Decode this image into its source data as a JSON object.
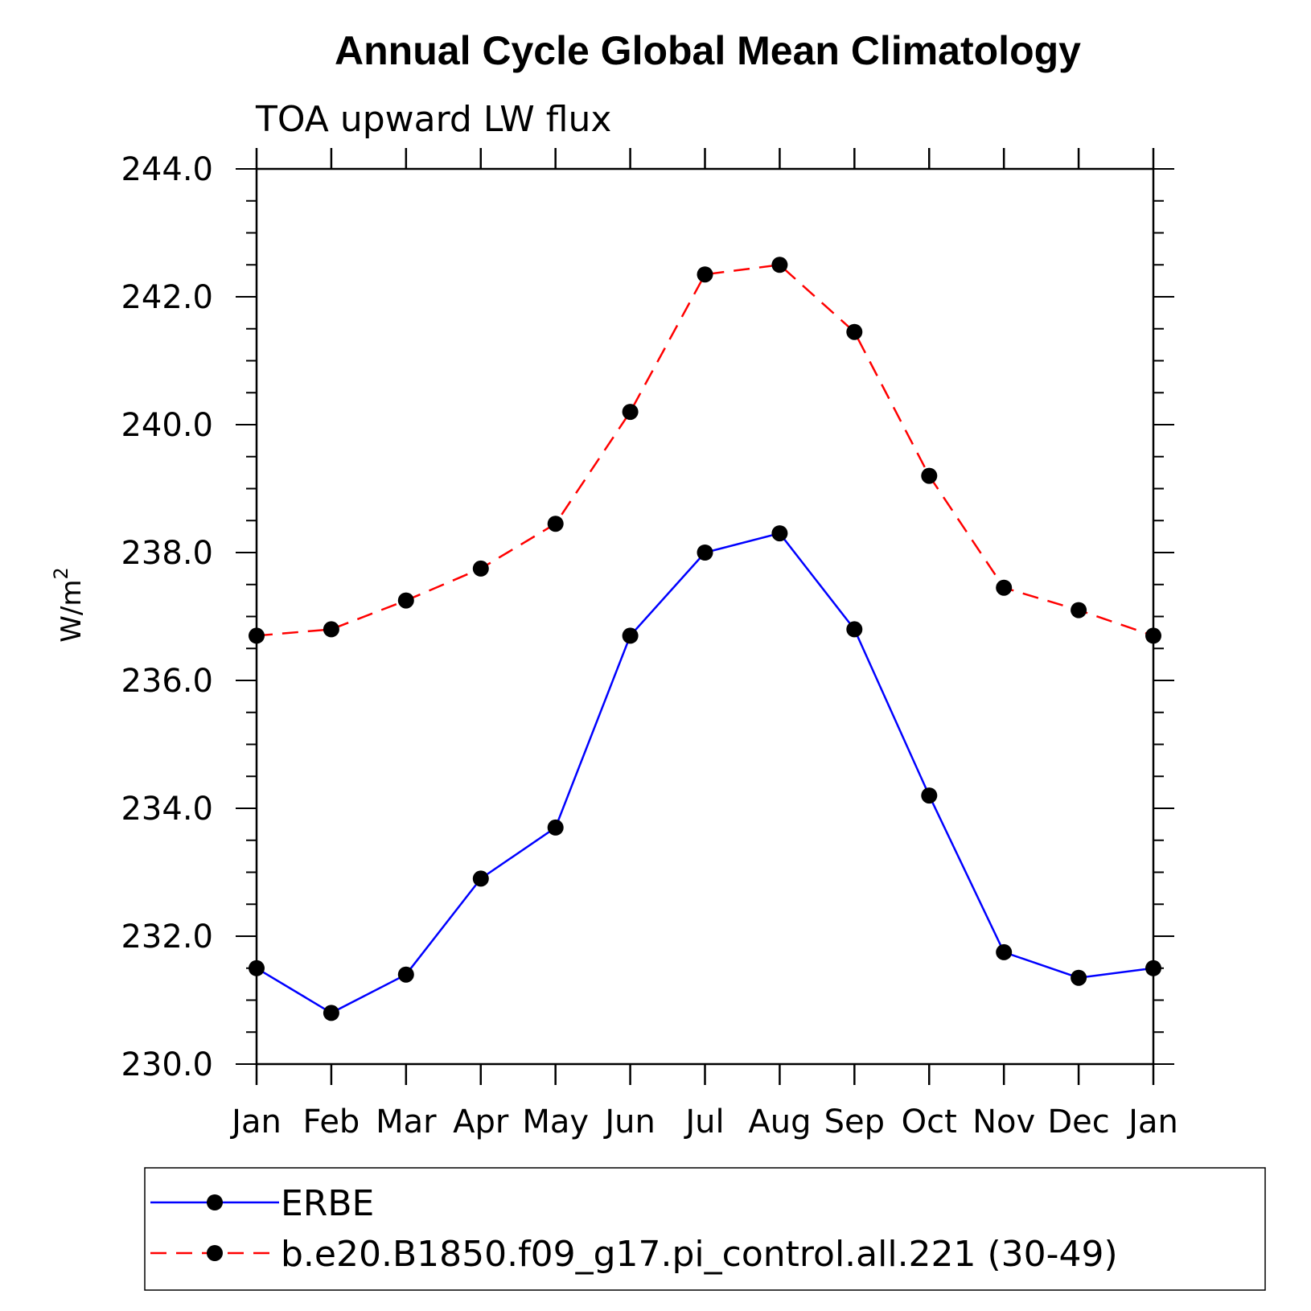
{
  "chart_data": {
    "type": "line",
    "title": "Annual Cycle Global Mean Climatology",
    "subtitle": "TOA upward LW flux",
    "ylabel": "W/m",
    "ylabel_superscript": "2",
    "categories": [
      "Jan",
      "Feb",
      "Mar",
      "Apr",
      "May",
      "Jun",
      "Jul",
      "Aug",
      "Sep",
      "Oct",
      "Nov",
      "Dec",
      "Jan"
    ],
    "ylim": [
      230.0,
      244.0
    ],
    "yticks": [
      "230.0",
      "232.0",
      "234.0",
      "236.0",
      "238.0",
      "240.0",
      "242.0",
      "244.0"
    ],
    "grid": false,
    "legend_position": "bottom",
    "series": [
      {
        "name": "ERBE",
        "color": "#0000ff",
        "line_style": "solid",
        "marker": "filled-circle",
        "values": [
          231.5,
          230.8,
          231.4,
          232.9,
          233.7,
          236.7,
          238.0,
          238.3,
          236.8,
          234.2,
          231.75,
          231.35,
          231.5
        ]
      },
      {
        "name": "b.e20.B1850.f09_g17.pi_control.all.221 (30-49)",
        "color": "#ff0000",
        "line_style": "dashed",
        "marker": "filled-circle",
        "values": [
          236.7,
          236.8,
          237.25,
          237.75,
          238.45,
          240.2,
          242.35,
          242.5,
          241.45,
          239.2,
          237.45,
          237.1,
          236.7
        ]
      }
    ]
  }
}
